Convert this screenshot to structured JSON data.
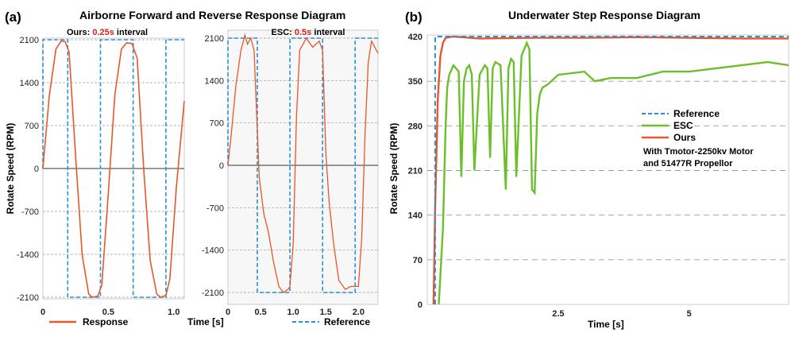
{
  "panel_a": {
    "label": "(a)",
    "title": "Airborne Forward and Reverse Response Diagram",
    "ylabel": "Rotate Speed (RPM)",
    "xlabel": "Time [s]",
    "yticks": [
      "2100",
      "1400",
      "700",
      "0",
      "-700",
      "-1400",
      "-2100"
    ],
    "left": {
      "subtitle_prefix": "Ours: ",
      "subtitle_value": "0.25s",
      "subtitle_suffix": " interval",
      "xticks": [
        "0",
        "0.5",
        "1.0"
      ]
    },
    "right": {
      "subtitle_prefix": "ESC: ",
      "subtitle_value": "0.5s",
      "subtitle_suffix": " interval",
      "xticks": [
        "0",
        "0.5",
        "1.0",
        "1.5",
        "2.0"
      ]
    },
    "legend": {
      "response": "Response",
      "reference": "Reference"
    }
  },
  "panel_b": {
    "label": "(b)",
    "title": "Underwater Step Response Diagram",
    "ylabel": "Rotate Speed (RPM)",
    "xlabel": "Time [s]",
    "yticks": [
      "420",
      "350",
      "280",
      "210",
      "140",
      "70",
      "0"
    ],
    "xticks": [
      "2.5",
      "5"
    ],
    "legend": {
      "reference": "Reference",
      "esc": "ESC",
      "ours": "Ours"
    },
    "note_line1": "With Tmotor-2250kv Motor",
    "note_line2": "and  51477R Propellor"
  },
  "colors": {
    "response": "#e8562a",
    "reference": "#2a8fd6",
    "esc": "#6cbf2a",
    "highlight": "#e02020",
    "grid": "#9a9a9a"
  },
  "chart_data": [
    {
      "type": "line",
      "title": "Ours: 0.25s interval",
      "xlabel": "Time [s]",
      "ylabel": "Rotate Speed (RPM)",
      "xlim": [
        0,
        1.08
      ],
      "ylim": [
        -2100,
        2100
      ],
      "series": [
        {
          "name": "Reference",
          "x": [
            0,
            0,
            0.19,
            0.19,
            0.44,
            0.44,
            0.69,
            0.69,
            0.94,
            0.94,
            1.08
          ],
          "y": [
            0,
            2100,
            2100,
            -2100,
            -2100,
            2100,
            2100,
            -2100,
            -2100,
            2100,
            2100
          ]
        },
        {
          "name": "Response",
          "x": [
            0,
            0.05,
            0.1,
            0.14,
            0.17,
            0.2,
            0.25,
            0.3,
            0.35,
            0.38,
            0.42,
            0.45,
            0.5,
            0.55,
            0.6,
            0.64,
            0.68,
            0.72,
            0.77,
            0.82,
            0.87,
            0.9,
            0.94,
            0.97,
            1.02,
            1.08
          ],
          "y": [
            0,
            1200,
            1950,
            2080,
            2070,
            1900,
            200,
            -1400,
            -2050,
            -2100,
            -2080,
            -1900,
            -400,
            1200,
            1950,
            2050,
            2040,
            1800,
            0,
            -1500,
            -2050,
            -2100,
            -2070,
            -1800,
            -300,
            1100
          ]
        }
      ]
    },
    {
      "type": "line",
      "title": "ESC: 0.5s interval",
      "xlabel": "Time [s]",
      "ylabel": "Rotate Speed (RPM)",
      "xlim": [
        0,
        2.3
      ],
      "ylim": [
        -2100,
        2100
      ],
      "series": [
        {
          "name": "Reference",
          "x": [
            0,
            0,
            0.45,
            0.45,
            0.95,
            0.95,
            1.45,
            1.45,
            1.95,
            1.95,
            2.3
          ],
          "y": [
            0,
            2100,
            2100,
            -2100,
            -2100,
            2100,
            2100,
            -2100,
            -2100,
            2100,
            2100
          ]
        },
        {
          "name": "Response",
          "x": [
            0,
            0.05,
            0.12,
            0.2,
            0.26,
            0.3,
            0.35,
            0.4,
            0.48,
            0.55,
            0.62,
            0.7,
            0.78,
            0.85,
            0.92,
            0.95,
            1.0,
            1.05,
            1.1,
            1.2,
            1.3,
            1.4,
            1.45,
            1.5,
            1.55,
            1.62,
            1.7,
            1.8,
            1.88,
            1.95,
            2.0,
            2.05,
            2.1,
            2.15,
            2.2,
            2.3
          ],
          "y": [
            0,
            500,
            1300,
            1900,
            2150,
            2000,
            2100,
            1900,
            -200,
            -800,
            -1100,
            -1600,
            -2000,
            -2100,
            -2050,
            -2000,
            -1300,
            800,
            1900,
            2100,
            1950,
            2050,
            1900,
            200,
            -600,
            -1300,
            -1900,
            -2050,
            -2000,
            -2000,
            -2000,
            -1200,
            500,
            1700,
            2050,
            1850
          ]
        }
      ]
    },
    {
      "type": "line",
      "title": "Underwater Step Response Diagram",
      "xlabel": "Time [s]",
      "ylabel": "Rotate Speed (RPM)",
      "xlim": [
        0,
        6.9
      ],
      "ylim": [
        0,
        420
      ],
      "series": [
        {
          "name": "Reference",
          "x": [
            0.15,
            0.15,
            6.9
          ],
          "y": [
            0,
            420,
            420
          ]
        },
        {
          "name": "ESC",
          "x": [
            0.22,
            0.3,
            0.35,
            0.38,
            0.42,
            0.5,
            0.6,
            0.65,
            0.7,
            0.75,
            0.8,
            0.85,
            0.9,
            1.0,
            1.1,
            1.15,
            1.2,
            1.25,
            1.3,
            1.4,
            1.5,
            1.55,
            1.6,
            1.65,
            1.7,
            1.8,
            1.9,
            1.95,
            2.0,
            2.05,
            2.1,
            2.15,
            2.2,
            2.3,
            2.5,
            3.0,
            3.2,
            3.5,
            4.0,
            4.5,
            5.0,
            5.5,
            6.0,
            6.5,
            6.9
          ],
          "y": [
            0,
            120,
            280,
            340,
            360,
            375,
            365,
            200,
            350,
            370,
            375,
            360,
            210,
            360,
            375,
            370,
            230,
            370,
            380,
            375,
            180,
            370,
            385,
            380,
            200,
            390,
            410,
            400,
            180,
            175,
            300,
            330,
            340,
            345,
            360,
            365,
            350,
            355,
            355,
            365,
            365,
            370,
            375,
            380,
            375
          ]
        },
        {
          "name": "Ours",
          "x": [
            0.12,
            0.15,
            0.2,
            0.25,
            0.3,
            0.35,
            0.5,
            1.0,
            2.0,
            3.0,
            4.0,
            5.0,
            6.0,
            6.9
          ],
          "y": [
            0,
            150,
            320,
            390,
            410,
            418,
            420,
            417,
            418,
            418,
            419,
            418,
            417,
            417
          ]
        }
      ]
    }
  ]
}
